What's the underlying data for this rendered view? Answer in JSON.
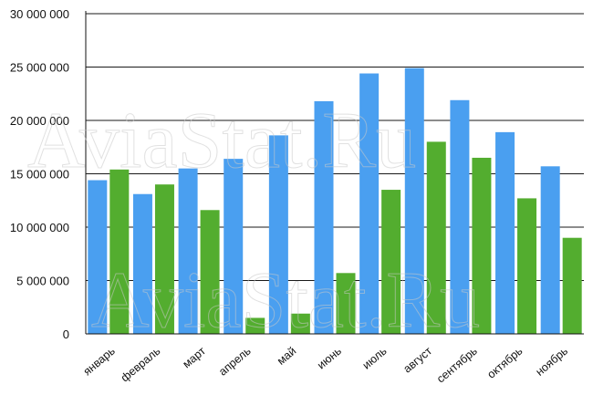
{
  "chart_data": {
    "type": "bar",
    "categories": [
      "январь",
      "февраль",
      "март",
      "апрель",
      "май",
      "июнь",
      "июль",
      "август",
      "сентябрь",
      "октябрь",
      "ноябрь"
    ],
    "series": [
      {
        "color": "#4a9ff0",
        "values": [
          14400000,
          13100000,
          15500000,
          16400000,
          18600000,
          21800000,
          24400000,
          24900000,
          21900000,
          18900000,
          15700000
        ]
      },
      {
        "color": "#53ad2f",
        "values": [
          15400000,
          14000000,
          11600000,
          1500000,
          1900000,
          5700000,
          13500000,
          18000000,
          16500000,
          12700000,
          9000000
        ]
      }
    ],
    "yticks": [
      "0",
      "5 000 000",
      "10 000 000",
      "15 000 000",
      "20 000 000",
      "25 000 000",
      "30 000 000"
    ],
    "ylim": [
      0,
      30000000
    ],
    "grid": true,
    "watermark": "AviaStat.Ru"
  }
}
